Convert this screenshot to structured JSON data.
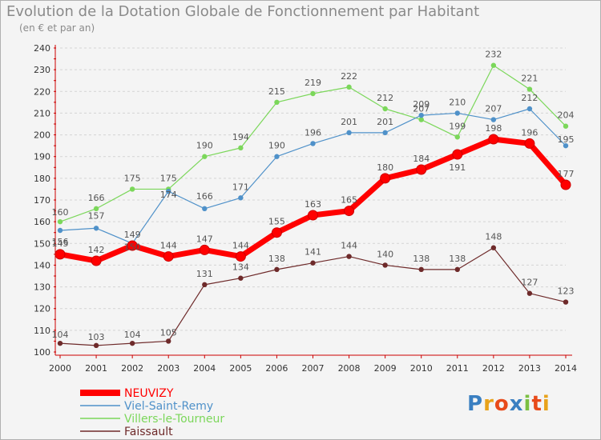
{
  "title": "Evolution de la Dotation Globale de Fonctionnement par Habitant",
  "subtitle": "(en € et par an)",
  "logo": {
    "text": "Proxiti"
  },
  "chart_data": {
    "type": "line",
    "title": "Evolution de la Dotation Globale de Fonctionnement par Habitant",
    "subtitle": "(en € et par an)",
    "xlabel": "",
    "ylabel": "",
    "ylim": [
      100,
      240
    ],
    "yticks": [
      100,
      110,
      120,
      130,
      140,
      150,
      160,
      170,
      180,
      190,
      200,
      210,
      220,
      230,
      240
    ],
    "x": [
      "2000",
      "2001",
      "2002",
      "2003",
      "2004",
      "2005",
      "2006",
      "2007",
      "2008",
      "2009",
      "2010",
      "2011",
      "2012",
      "2013",
      "2014"
    ],
    "grid": true,
    "legend_position": "bottom-left",
    "series": [
      {
        "name": "NEUVIZY",
        "color": "#ff0000",
        "values": [
          145,
          142,
          149,
          144,
          147,
          144,
          155,
          163,
          165,
          180,
          184,
          191,
          198,
          196,
          177
        ]
      },
      {
        "name": "Viel-Saint-Remy",
        "color": "#4f91c9",
        "values": [
          156,
          157,
          150,
          174,
          166,
          171,
          190,
          196,
          201,
          201,
          209,
          210,
          207,
          212,
          195
        ]
      },
      {
        "name": "Villers-le-Tourneur",
        "color": "#7bd75a",
        "values": [
          160,
          166,
          175,
          175,
          190,
          194,
          215,
          219,
          222,
          212,
          207,
          199,
          232,
          221,
          204
        ]
      },
      {
        "name": "Faissault",
        "color": "#6e2a2a",
        "values": [
          104,
          103,
          104,
          105,
          131,
          134,
          138,
          141,
          144,
          140,
          138,
          138,
          148,
          127,
          123
        ]
      }
    ]
  }
}
